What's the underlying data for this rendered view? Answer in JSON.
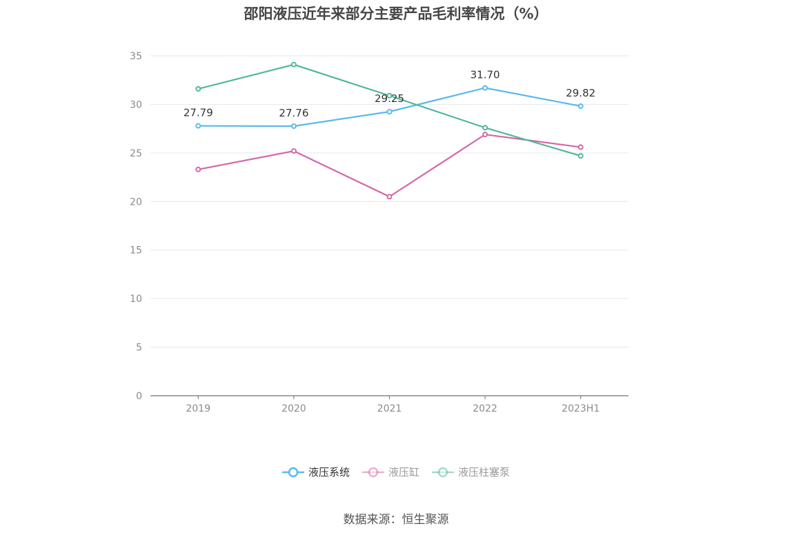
{
  "title": "邵阳液压近年来部分主要产品毛利率情况（%）",
  "source": "数据来源：恒生聚源",
  "chart_data": {
    "type": "line",
    "categories": [
      "2019",
      "2020",
      "2021",
      "2022",
      "2023H1"
    ],
    "ylim": [
      0,
      35
    ],
    "yticks": [
      0,
      5,
      10,
      15,
      20,
      25,
      30,
      35
    ],
    "grid": true,
    "legend_position": "bottom",
    "series": [
      {
        "name": "液压系统",
        "color": "#5ab9ea",
        "values": [
          27.79,
          27.76,
          29.25,
          31.7,
          29.82
        ],
        "labels": [
          "27.79",
          "27.76",
          "29.25",
          "31.70",
          "29.82"
        ],
        "legend_active": true
      },
      {
        "name": "液压缸",
        "color": "#d466a9",
        "values": [
          23.3,
          25.2,
          20.5,
          26.9,
          25.6
        ],
        "legend_active": false
      },
      {
        "name": "液压柱塞泵",
        "color": "#4db89b",
        "values": [
          31.6,
          34.1,
          30.9,
          27.6,
          24.7
        ],
        "legend_active": false
      }
    ]
  }
}
